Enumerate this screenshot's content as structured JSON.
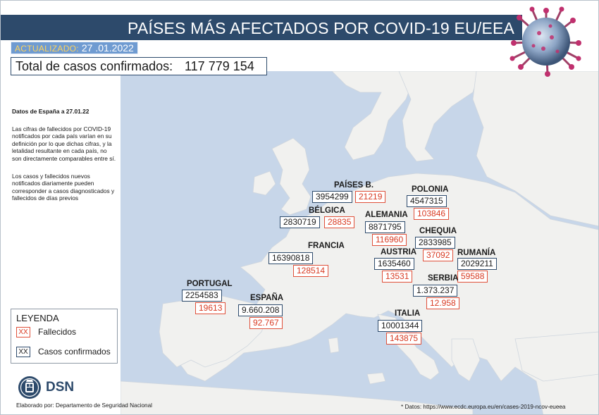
{
  "header": {
    "title": "PAÍSES MÁS AFECTADOS POR COVID-19 EU/EEA",
    "updated_label": "ACTUALIZADO:",
    "updated_date": "27 .01.2022",
    "total_label": "Total de casos confirmados:",
    "total_value": "117 779 154"
  },
  "notes": {
    "heading": "Datos de España a 27.01.22",
    "paragraph1": "Las cifras de fallecidos por COVID-19 notificados por cada país varían en su definición por lo que dichas cifras, y la letalidad resultante en cada país, no son directamente comparables entre sí.",
    "paragraph2": "Los casos y fallecidos nuevos notificados diariamente pueden corresponder a casos diagnosticados y fallecidos de días previos"
  },
  "countries": [
    {
      "name": "PAÍSES B.",
      "cases": "3954299",
      "deaths": "21219"
    },
    {
      "name": "POLONIA",
      "cases": "4547315",
      "deaths": "103846"
    },
    {
      "name": "BÉLGICA",
      "cases": "2830719",
      "deaths": "28835"
    },
    {
      "name": "ALEMANIA",
      "cases": "8871795",
      "deaths": "116960"
    },
    {
      "name": "CHEQUIA",
      "cases": "2833985",
      "deaths": "37092"
    },
    {
      "name": "FRANCIA",
      "cases": "16390818",
      "deaths": "128514"
    },
    {
      "name": "AUSTRIA",
      "cases": "1635460",
      "deaths": "13531"
    },
    {
      "name": "RUMANÍA",
      "cases": "2029211",
      "deaths": "59588"
    },
    {
      "name": "PORTUGAL",
      "cases": "2254583",
      "deaths": "19613"
    },
    {
      "name": "SERBIA",
      "cases": "1.373.237",
      "deaths": "12.958"
    },
    {
      "name": "ESPAÑA",
      "cases": "9.660.208",
      "deaths": "92.767"
    },
    {
      "name": "ITALIA",
      "cases": "10001344",
      "deaths": "143875"
    }
  ],
  "legend": {
    "title": "LEYENDA",
    "swatch": "XX",
    "deaths_label": "Fallecidos",
    "cases_label": "Casos confirmados"
  },
  "footer": {
    "logo_text": "DSN",
    "credit": "Elaborado por: Departamento de Seguridad Nacional",
    "source": "* Datos: https://www.ecdc.europa.eu/en/cases-2019-ncov-eueea"
  },
  "colors": {
    "header": "#2d4a6b",
    "sea": "#c7d6e9",
    "land": "#f1f1ef",
    "deaths": "#e0503a",
    "cases": "#2d4a6b",
    "updated_bg": "#6f9bd1"
  }
}
